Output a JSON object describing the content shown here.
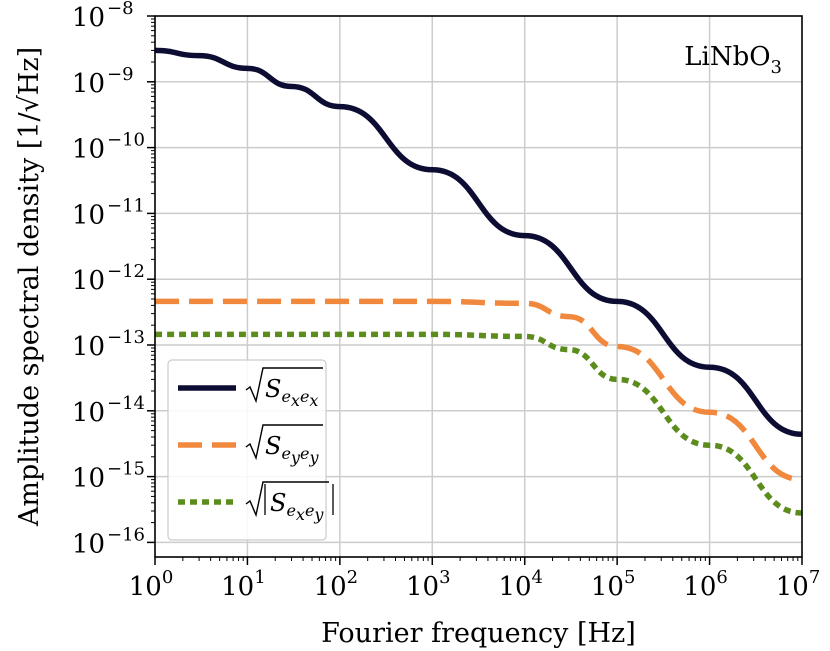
{
  "chart_data": {
    "type": "line",
    "xscale": "log",
    "yscale": "log",
    "xlim": [
      1,
      10000000
    ],
    "ylim": [
      6e-17,
      1e-08
    ],
    "xlabel": "Fourier frequency [Hz]",
    "ylabel": "Amplitude spectral density [1/√Hz]",
    "annotation": {
      "text": "LiNbO",
      "sub": "3",
      "position": "top-right"
    },
    "grid": true,
    "legend": "bottom-left",
    "x_ticks": [
      {
        "base": "10",
        "exp": "0",
        "value": 1
      },
      {
        "base": "10",
        "exp": "1",
        "value": 10
      },
      {
        "base": "10",
        "exp": "2",
        "value": 100
      },
      {
        "base": "10",
        "exp": "3",
        "value": 1000
      },
      {
        "base": "10",
        "exp": "4",
        "value": 10000
      },
      {
        "base": "10",
        "exp": "5",
        "value": 100000
      },
      {
        "base": "10",
        "exp": "6",
        "value": 1000000
      },
      {
        "base": "10",
        "exp": "7",
        "value": 10000000
      }
    ],
    "y_ticks": [
      {
        "base": "10",
        "exp": "−8",
        "value": 1e-08
      },
      {
        "base": "10",
        "exp": "−9",
        "value": 1e-09
      },
      {
        "base": "10",
        "exp": "−10",
        "value": 1e-10
      },
      {
        "base": "10",
        "exp": "−11",
        "value": 1e-11
      },
      {
        "base": "10",
        "exp": "−12",
        "value": 1e-12
      },
      {
        "base": "10",
        "exp": "−13",
        "value": 1e-13
      },
      {
        "base": "10",
        "exp": "−14",
        "value": 1e-14
      },
      {
        "base": "10",
        "exp": "−15",
        "value": 1e-15
      },
      {
        "base": "10",
        "exp": "−16",
        "value": 1e-16
      }
    ],
    "series": [
      {
        "legend": {
          "main": "S",
          "sub": "e",
          "sub1": "x",
          "sub2": "e",
          "sub3": "x",
          "abs": false
        },
        "color": "#0d0d33",
        "dash": "solid",
        "x": [
          1,
          3,
          10,
          30,
          100,
          1000,
          10000,
          100000,
          1000000,
          10000000
        ],
        "y": [
          3e-09,
          2.5e-09,
          1.6e-09,
          8.5e-10,
          4.2e-10,
          4.6e-11,
          4.6e-12,
          4.6e-13,
          4.6e-14,
          4.4e-15
        ]
      },
      {
        "legend": {
          "main": "S",
          "sub": "e",
          "sub1": "y",
          "sub2": "e",
          "sub3": "y",
          "abs": false
        },
        "color": "#f0893e",
        "dash": "dashed",
        "x": [
          1,
          10,
          100,
          1000,
          10000,
          30000,
          100000,
          1000000,
          10000000
        ],
        "y": [
          4.6e-13,
          4.6e-13,
          4.6e-13,
          4.6e-13,
          4.3e-13,
          2.7e-13,
          9.5e-14,
          9.5e-15,
          9e-16
        ]
      },
      {
        "legend": {
          "main": "S",
          "sub": "e",
          "sub1": "x",
          "sub2": "e",
          "sub3": "y",
          "abs": true
        },
        "color": "#5b8c1c",
        "dash": "dotted",
        "x": [
          1,
          10,
          100,
          1000,
          10000,
          30000,
          100000,
          1000000,
          10000000
        ],
        "y": [
          1.45e-13,
          1.45e-13,
          1.45e-13,
          1.45e-13,
          1.35e-13,
          8.5e-14,
          3e-14,
          3e-15,
          2.8e-16
        ]
      }
    ]
  }
}
